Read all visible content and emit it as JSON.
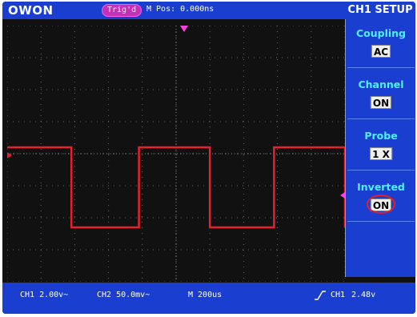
{
  "header": {
    "brand": "OWON",
    "trigger_status": "Trig'd",
    "position_text": "M Pos: 0.000ns"
  },
  "menu": {
    "title": "CH1 SETUP",
    "items": [
      {
        "label": "Coupling",
        "value": "AC"
      },
      {
        "label": "Channel",
        "value": "ON"
      },
      {
        "label": "Probe",
        "value": "1 X"
      },
      {
        "label": "Inverted",
        "value": "ON"
      }
    ]
  },
  "status": {
    "ch1_scale": "CH1 2.00v~",
    "ch2_scale": "CH2 50.0mv~",
    "timebase": "M 200us",
    "trigger_source": "CH1",
    "trigger_level": "2.48v",
    "trigger_edge_icon": "rising-edge-icon"
  },
  "markers": {
    "channel_marker": "1",
    "trigger_position_marker": "T"
  },
  "colors": {
    "panel_blue": "#1a3fd0",
    "trace_red": "#e8202a",
    "menu_label_cyan": "#4ff0ff",
    "trigger_magenta": "#ff40e0",
    "grid_gray": "#6a6a6a"
  },
  "waveform": {
    "type": "square",
    "high_level_div": 0.2,
    "low_level_div": -2.3,
    "transitions_div": [
      0.0,
      1.9,
      3.9,
      6.0,
      7.9,
      10.0
    ],
    "initial_state": "high"
  },
  "grid": {
    "horizontal_divisions": 10,
    "vertical_divisions": 8
  }
}
